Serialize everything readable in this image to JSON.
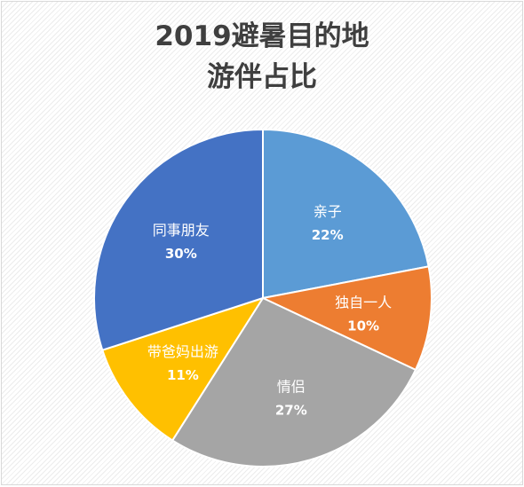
{
  "chart_data": {
    "type": "pie",
    "title_lines": [
      "2019避暑目的地",
      "游伴占比"
    ],
    "slices": [
      {
        "label": "亲子",
        "value": 22,
        "value_label": "22%",
        "color": "#5b9bd5"
      },
      {
        "label": "独自一人",
        "value": 10,
        "value_label": "10%",
        "color": "#ed7d31"
      },
      {
        "label": "情侣",
        "value": 27,
        "value_label": "27%",
        "color": "#a5a5a5"
      },
      {
        "label": "带爸妈出游",
        "value": 11,
        "value_label": "11%",
        "color": "#ffc000"
      },
      {
        "label": "同事朋友",
        "value": 30,
        "value_label": "30%",
        "color": "#4472c4"
      }
    ],
    "start_angle_deg": 0,
    "direction": "clockwise",
    "legend": "none",
    "data_labels": "inside"
  }
}
